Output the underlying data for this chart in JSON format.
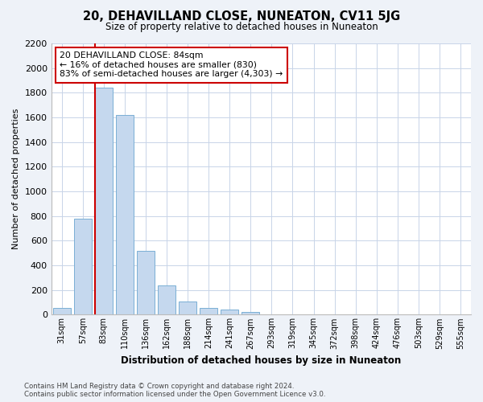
{
  "title": "20, DEHAVILLAND CLOSE, NUNEATON, CV11 5JG",
  "subtitle": "Size of property relative to detached houses in Nuneaton",
  "xlabel": "Distribution of detached houses by size in Nuneaton",
  "ylabel": "Number of detached properties",
  "bar_labels": [
    "31sqm",
    "57sqm",
    "83sqm",
    "110sqm",
    "136sqm",
    "162sqm",
    "188sqm",
    "214sqm",
    "241sqm",
    "267sqm",
    "293sqm",
    "319sqm",
    "345sqm",
    "372sqm",
    "398sqm",
    "424sqm",
    "476sqm",
    "503sqm",
    "529sqm",
    "555sqm"
  ],
  "bar_values": [
    55,
    780,
    1840,
    1620,
    520,
    240,
    107,
    55,
    40,
    20,
    5,
    0,
    0,
    0,
    0,
    0,
    0,
    0,
    0,
    0
  ],
  "bar_color": "#c5d8ee",
  "bar_edge_color": "#7aafd4",
  "highlight_bar_index": 2,
  "highlight_color": "#cc0000",
  "ylim": [
    0,
    2200
  ],
  "yticks": [
    0,
    200,
    400,
    600,
    800,
    1000,
    1200,
    1400,
    1600,
    1800,
    2000,
    2200
  ],
  "annotation_text": "20 DEHAVILLAND CLOSE: 84sqm\n← 16% of detached houses are smaller (830)\n83% of semi-detached houses are larger (4,303) →",
  "annotation_box_color": "#ffffff",
  "annotation_box_edge": "#cc0000",
  "footer_text": "Contains HM Land Registry data © Crown copyright and database right 2024.\nContains public sector information licensed under the Open Government Licence v3.0.",
  "bg_color": "#eef2f8",
  "plot_bg_color": "#ffffff",
  "grid_color": "#c8d4e8"
}
